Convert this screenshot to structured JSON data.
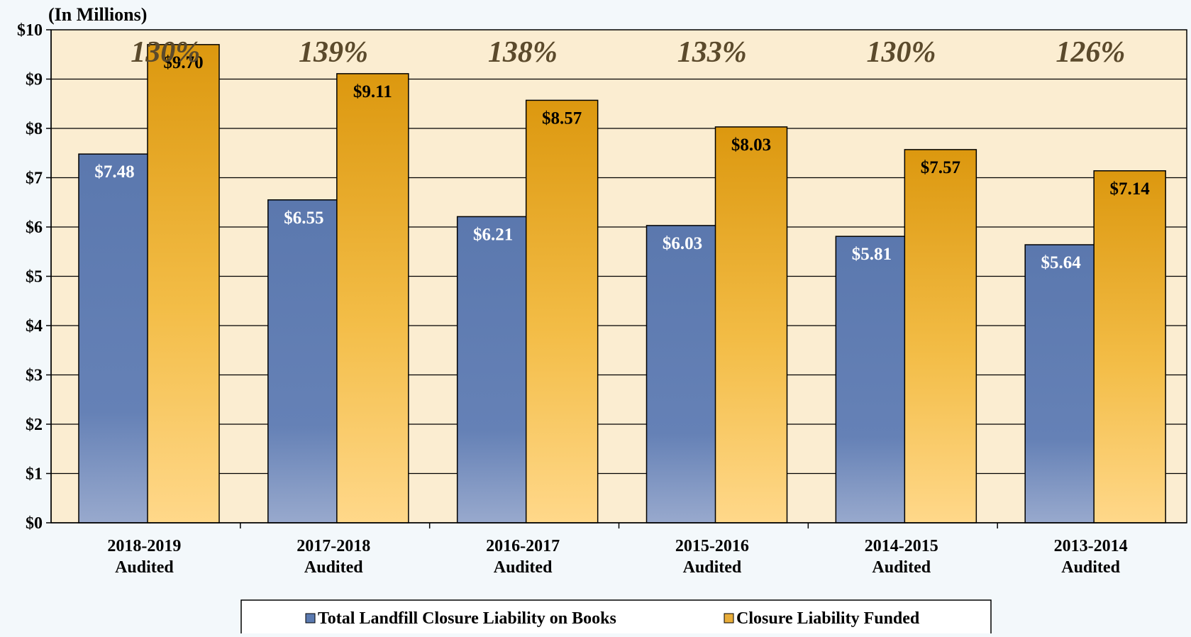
{
  "chart_data": {
    "type": "bar",
    "unit_label": "(In Millions)",
    "categories": [
      [
        "2018-2019",
        "Audited"
      ],
      [
        "2017-2018",
        "Audited"
      ],
      [
        "2016-2017",
        "Audited"
      ],
      [
        "2015-2016",
        "Audited"
      ],
      [
        "2014-2015",
        "Audited"
      ],
      [
        "2013-2014",
        "Audited"
      ]
    ],
    "series": [
      {
        "name": "Total Landfill Closure Liability on Books",
        "values": [
          7.48,
          6.55,
          6.21,
          6.03,
          5.81,
          5.64
        ],
        "labels": [
          "$7.48",
          "$6.55",
          "$6.21",
          "$6.03",
          "$5.81",
          "$5.64"
        ],
        "color": "#5b7ab0"
      },
      {
        "name": "Closure Liability Funded",
        "values": [
          9.7,
          9.11,
          8.57,
          8.03,
          7.57,
          7.14
        ],
        "labels": [
          "$9.70",
          "$9.11",
          "$8.57",
          "$8.03",
          "$7.57",
          "$7.14"
        ],
        "color": "#e3a01e"
      }
    ],
    "percent_labels": [
      "130%",
      "139%",
      "138%",
      "133%",
      "130%",
      "126%"
    ],
    "ylim": [
      0,
      10
    ],
    "yticks": [
      0,
      1,
      2,
      3,
      4,
      5,
      6,
      7,
      8,
      9,
      10
    ],
    "ytick_labels": [
      "$0",
      "$1",
      "$2",
      "$3",
      "$4",
      "$5",
      "$6",
      "$7",
      "$8",
      "$9",
      "$10"
    ],
    "grid": true,
    "legend_position": "bottom-center",
    "colors": {
      "plot_background": "#fbedd1",
      "page_background": "#f3f8fb",
      "percent_text": "#5b4a2c"
    }
  }
}
